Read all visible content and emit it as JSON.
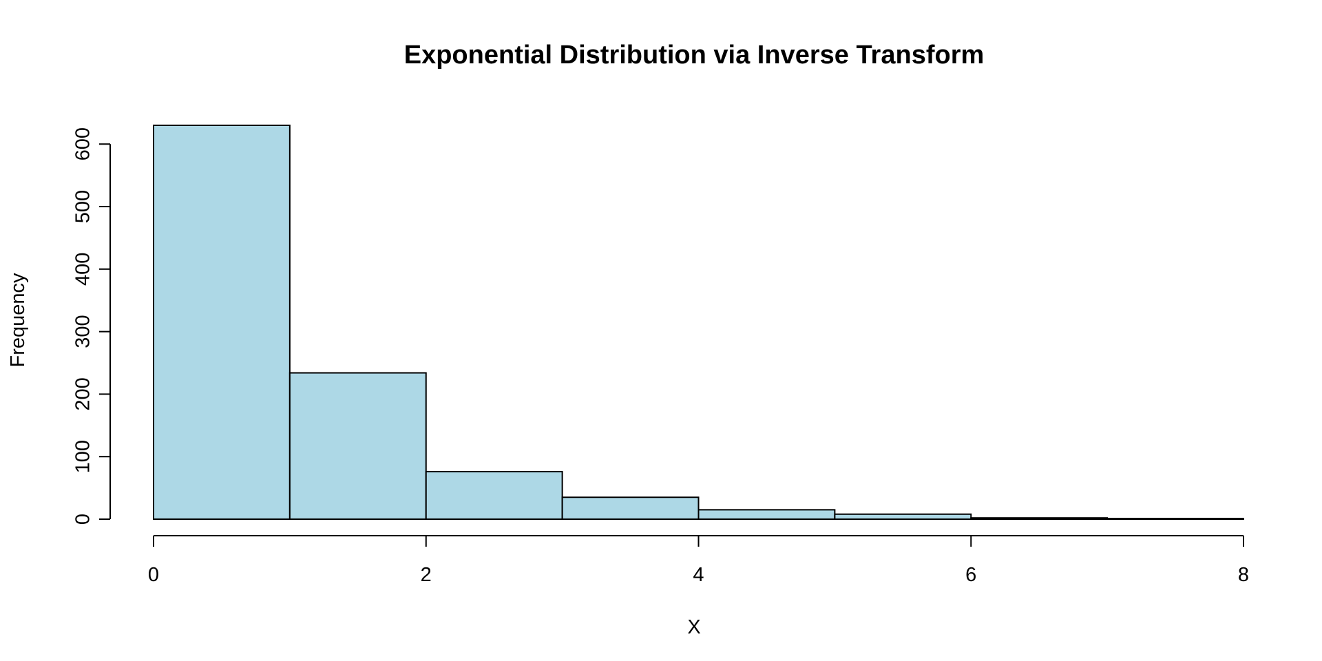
{
  "chart_data": {
    "type": "bar",
    "title": "Exponential Distribution via Inverse Transform",
    "xlabel": "X",
    "ylabel": "Frequency",
    "bins": [
      {
        "start": 0,
        "end": 1,
        "count": 630
      },
      {
        "start": 1,
        "end": 2,
        "count": 234
      },
      {
        "start": 2,
        "end": 3,
        "count": 76
      },
      {
        "start": 3,
        "end": 4,
        "count": 35
      },
      {
        "start": 4,
        "end": 5,
        "count": 15
      },
      {
        "start": 5,
        "end": 6,
        "count": 8
      },
      {
        "start": 6,
        "end": 7,
        "count": 2
      },
      {
        "start": 7,
        "end": 8,
        "count": 1
      }
    ],
    "xlim": [
      0,
      8
    ],
    "ylim": [
      0,
      630
    ],
    "x_ticks": [
      "0",
      "2",
      "4",
      "6",
      "8"
    ],
    "y_ticks": [
      "0",
      "100",
      "200",
      "300",
      "400",
      "500",
      "600"
    ],
    "bar_color": "#add8e6",
    "grid": false,
    "legend": "none"
  }
}
